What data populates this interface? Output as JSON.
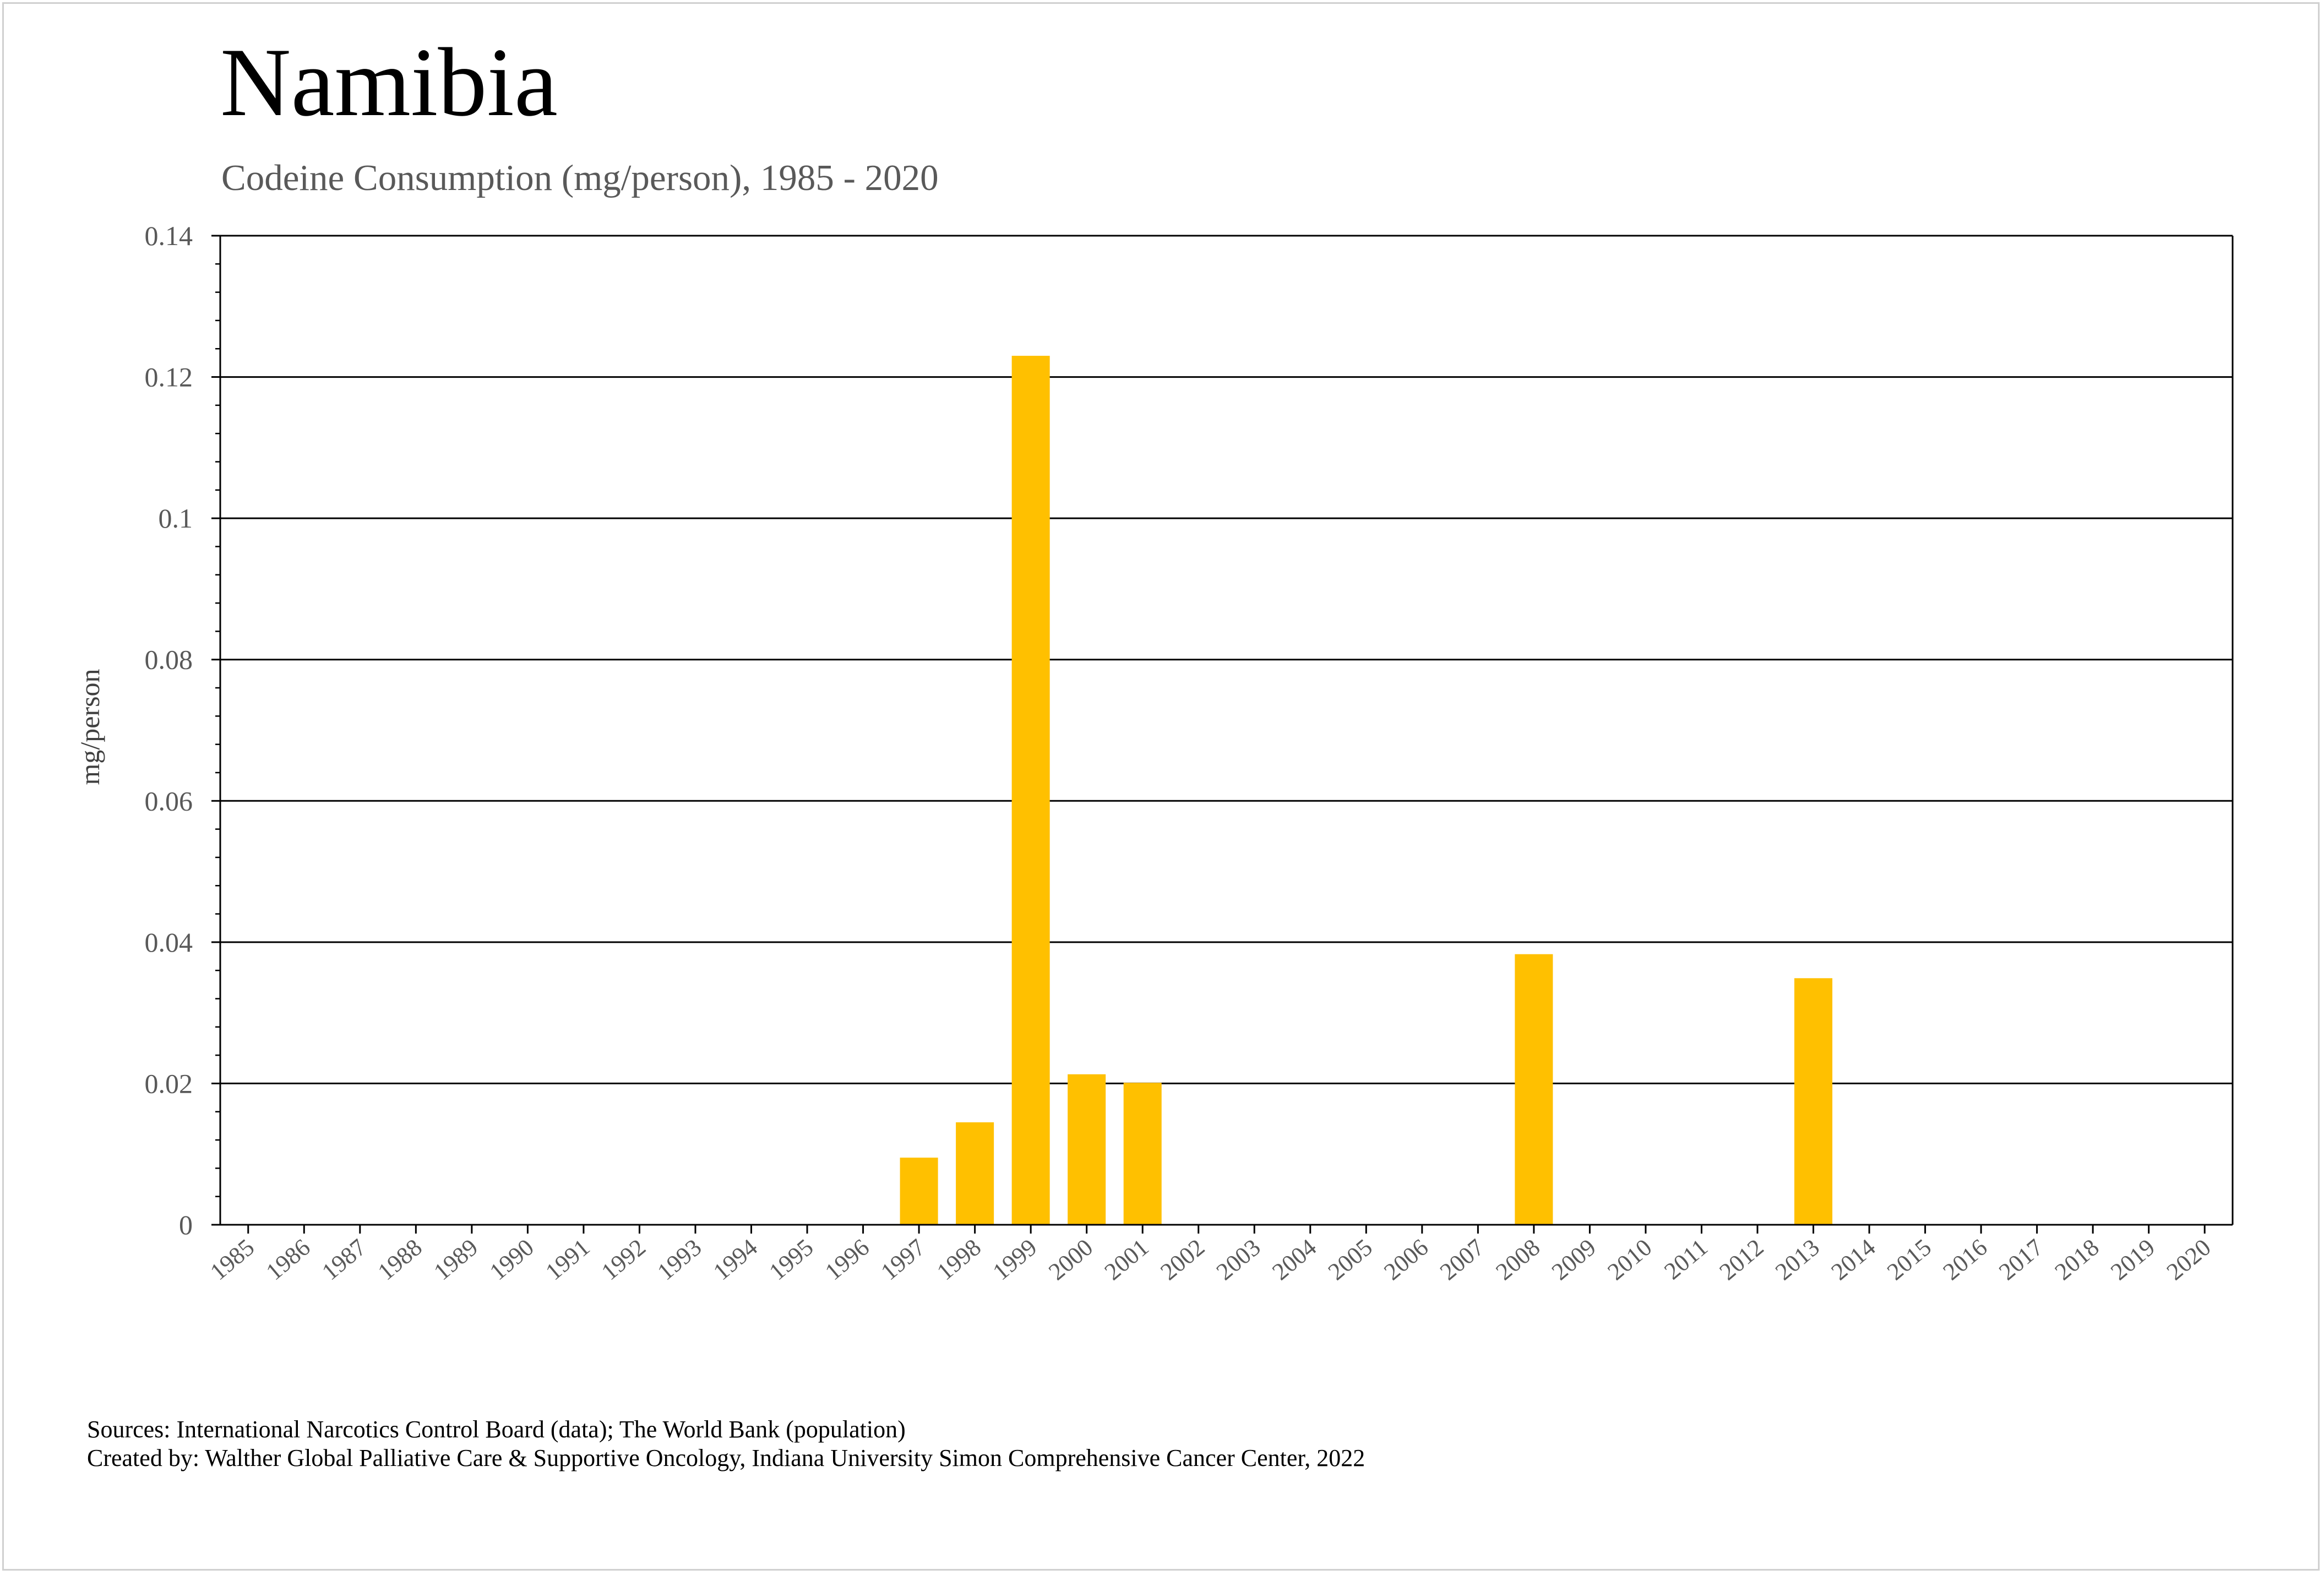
{
  "header": {
    "title": "Namibia",
    "subtitle": "Codeine Consumption (mg/person), 1985 - 2020"
  },
  "footer": {
    "sources": "Sources: International Narcotics Control Board (data); The World Bank (population)",
    "created_by": "Created by: Walther Global Palliative Care & Supportive Oncology, Indiana University Simon Comprehensive Cancer Center, 2022"
  },
  "colors": {
    "bar": "#FFC000",
    "grid": "#000000",
    "tick_text": "#595959"
  },
  "chart_data": {
    "type": "bar",
    "title": "Namibia",
    "subtitle": "Codeine Consumption (mg/person), 1985 - 2020",
    "xlabel": "",
    "ylabel": "mg/person",
    "ylim": [
      0,
      0.14
    ],
    "grid": true,
    "yticks": [
      "0",
      "0.02",
      "0.04",
      "0.06",
      "0.08",
      "0.1",
      "0.12",
      "0.14"
    ],
    "ytick_values": [
      0,
      0.02,
      0.04,
      0.06,
      0.08,
      0.1,
      0.12,
      0.14
    ],
    "categories": [
      "1985",
      "1986",
      "1987",
      "1988",
      "1989",
      "1990",
      "1991",
      "1992",
      "1993",
      "1994",
      "1995",
      "1996",
      "1997",
      "1998",
      "1999",
      "2000",
      "2001",
      "2002",
      "2003",
      "2004",
      "2005",
      "2006",
      "2007",
      "2008",
      "2009",
      "2010",
      "2011",
      "2012",
      "2013",
      "2014",
      "2015",
      "2016",
      "2017",
      "2018",
      "2019",
      "2020"
    ],
    "values": [
      0,
      0,
      0,
      0,
      0,
      0,
      0,
      0,
      0,
      0,
      0,
      0,
      0.0095,
      0.0145,
      0.123,
      0.0213,
      0.0201,
      0,
      0,
      0,
      0,
      0,
      0,
      0.0383,
      0,
      0,
      0,
      0,
      0.0349,
      0,
      0,
      0,
      0,
      0,
      0,
      0
    ]
  }
}
